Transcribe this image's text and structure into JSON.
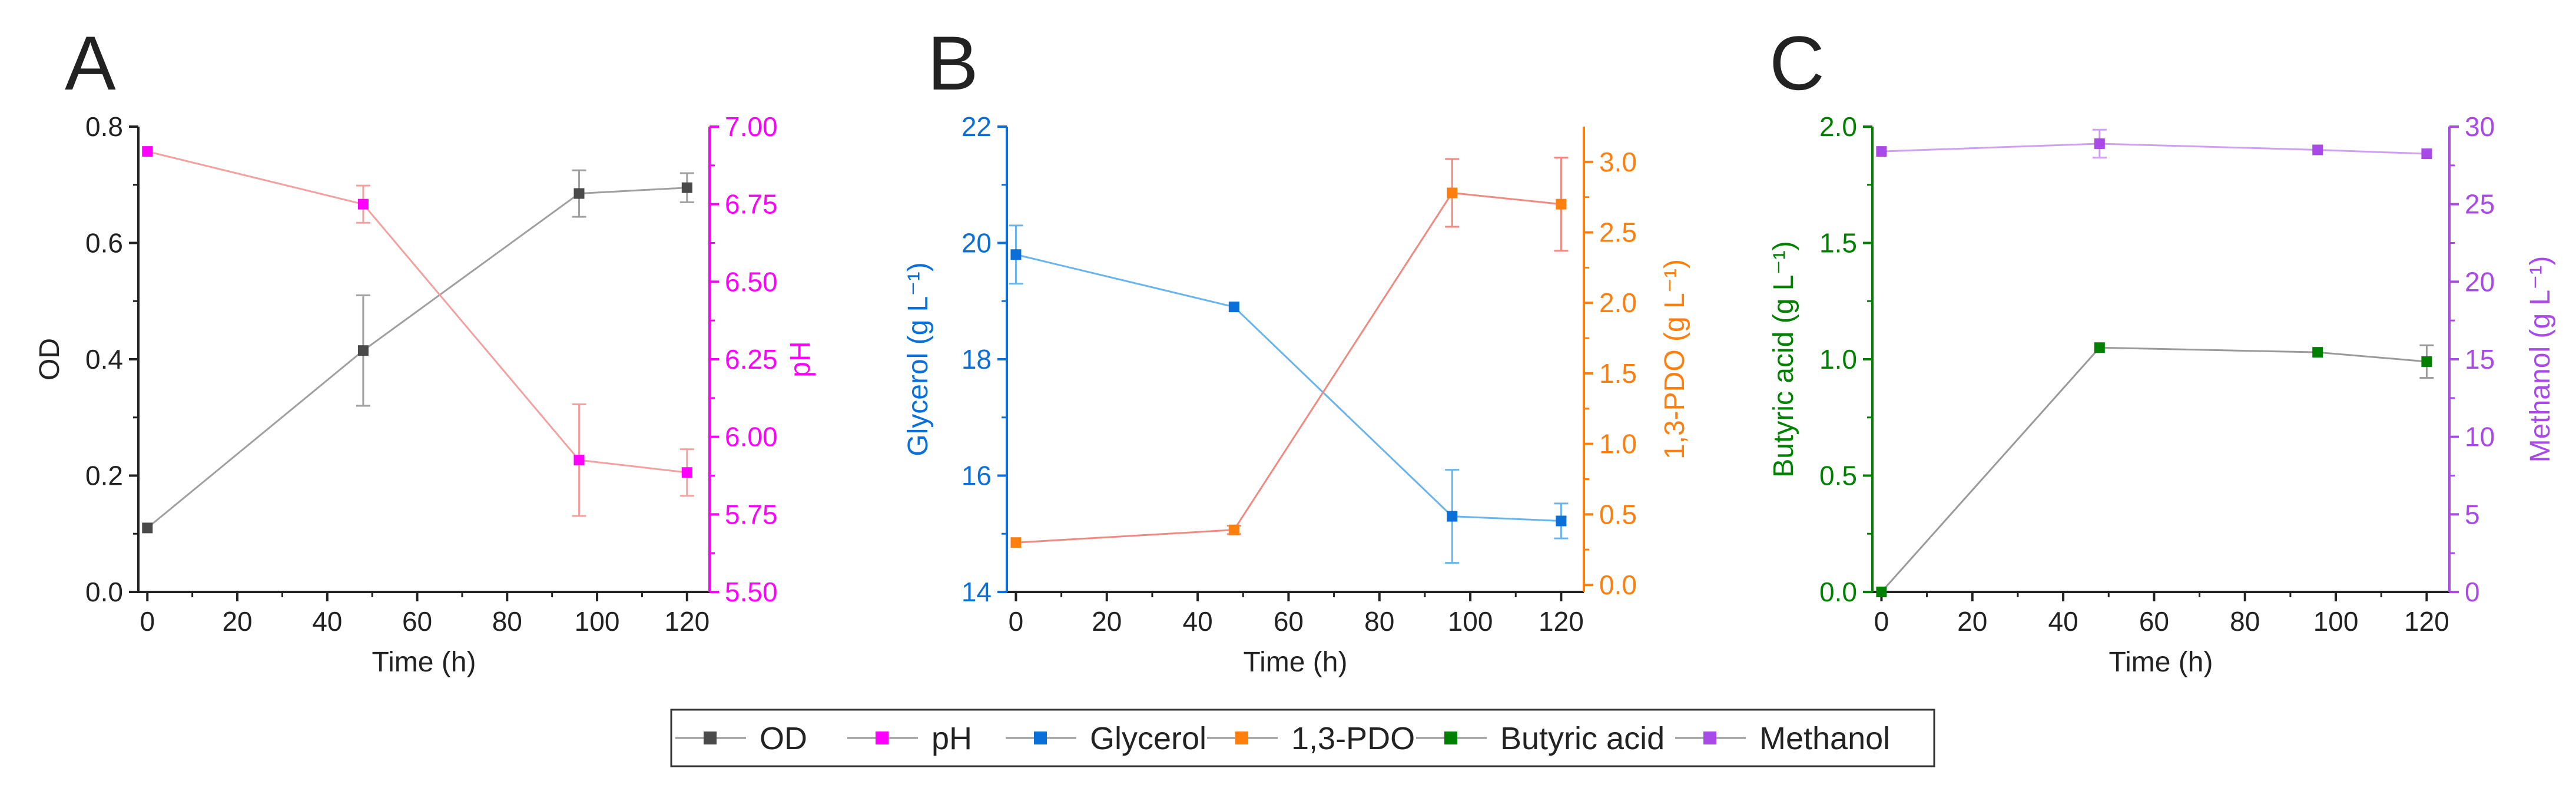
{
  "legend": {
    "items": [
      {
        "label": "OD",
        "color": "#4a4a4a"
      },
      {
        "label": "pH",
        "color": "#ff00ff"
      },
      {
        "label": "Glycerol",
        "color": "#0a6fd8"
      },
      {
        "label": "1,3-PDO",
        "color": "#ff7f0e"
      },
      {
        "label": "Butyric acid",
        "color": "#008000"
      },
      {
        "label": "Methanol",
        "color": "#a94ae8"
      }
    ]
  },
  "chart_data": [
    {
      "panel_label": "A",
      "type": "line",
      "xlabel": "Time (h)",
      "xlim": [
        -2,
        125
      ],
      "xticks": [
        "0",
        "20",
        "40",
        "60",
        "80",
        "100",
        "120"
      ],
      "left_axis": {
        "label": "OD",
        "color": "#222222",
        "ylim": [
          0,
          0.8
        ],
        "ticks": [
          "0.0",
          "0.2",
          "0.4",
          "0.6",
          "0.8"
        ]
      },
      "right_axis": {
        "label": "pH",
        "color": "#ff00ff",
        "ylim": [
          5.5,
          7.0
        ],
        "ticks": [
          "5.50",
          "5.75",
          "6.00",
          "6.25",
          "6.50",
          "6.75",
          "7.00"
        ]
      },
      "series": [
        {
          "name": "OD",
          "axis": "left",
          "color": "#4a4a4a",
          "marker_color": "#4a4a4a",
          "line_color": "#a0a0a0",
          "x": [
            0,
            48,
            96,
            120
          ],
          "values": [
            0.11,
            0.415,
            0.685,
            0.695
          ],
          "errors": [
            0.0,
            0.095,
            0.04,
            0.025
          ]
        },
        {
          "name": "pH",
          "axis": "right",
          "color": "#ff00ff",
          "marker_color": "#ff00ff",
          "line_color": "#f2a0a0",
          "x": [
            0,
            48,
            96,
            120
          ],
          "values": [
            6.92,
            6.75,
            5.925,
            5.885
          ],
          "errors": [
            0.0,
            0.06,
            0.18,
            0.075
          ]
        }
      ]
    },
    {
      "panel_label": "B",
      "type": "line",
      "xlabel": "Time (h)",
      "xlim": [
        -2,
        125
      ],
      "xticks": [
        "0",
        "20",
        "40",
        "60",
        "80",
        "100",
        "120"
      ],
      "left_axis": {
        "label": "Glycerol (g L⁻¹)",
        "color": "#0a6fd8",
        "ylim": [
          14,
          22
        ],
        "ticks": [
          "14",
          "16",
          "18",
          "20",
          "22"
        ]
      },
      "right_axis": {
        "label": "1,3-PDO (g L⁻¹)",
        "color": "#ff7f0e",
        "ylim": [
          -0.05,
          3.25
        ],
        "ticks": [
          "0.0",
          "0.5",
          "1.0",
          "1.5",
          "2.0",
          "2.5",
          "3.0"
        ]
      },
      "series": [
        {
          "name": "Glycerol",
          "axis": "left",
          "color": "#0a6fd8",
          "marker_color": "#0a6fd8",
          "line_color": "#6ab4ec",
          "x": [
            0,
            48,
            96,
            120
          ],
          "values": [
            19.8,
            18.9,
            15.3,
            15.22
          ],
          "errors": [
            0.5,
            0.0,
            0.8,
            0.3
          ]
        },
        {
          "name": "1,3-PDO",
          "axis": "right",
          "color": "#ff7f0e",
          "marker_color": "#ff7f0e",
          "line_color": "#f08a80",
          "x": [
            0,
            48,
            96,
            120
          ],
          "values": [
            0.3,
            0.39,
            2.78,
            2.7
          ],
          "errors": [
            0.0,
            0.03,
            0.24,
            0.33
          ]
        }
      ]
    },
    {
      "panel_label": "C",
      "type": "line",
      "xlabel": "Time (h)",
      "xlim": [
        -2,
        125
      ],
      "xticks": [
        "0",
        "20",
        "40",
        "60",
        "80",
        "100",
        "120"
      ],
      "left_axis": {
        "label": "Butyric acid (g L⁻¹)",
        "color": "#008000",
        "ylim": [
          0,
          2.0
        ],
        "ticks": [
          "0.0",
          "0.5",
          "1.0",
          "1.5",
          "2.0"
        ]
      },
      "right_axis": {
        "label": "Methanol (g L⁻¹)",
        "color": "#a94ae8",
        "ylim": [
          0,
          30
        ],
        "ticks": [
          "0",
          "5",
          "10",
          "15",
          "20",
          "25",
          "30"
        ]
      },
      "series": [
        {
          "name": "Butyric acid",
          "axis": "left",
          "color": "#008000",
          "marker_color": "#008000",
          "line_color": "#9a9a9a",
          "x": [
            0,
            48,
            96,
            120
          ],
          "values": [
            0.0,
            1.05,
            1.03,
            0.99
          ],
          "errors": [
            0.0,
            0.0,
            0.0,
            0.07
          ]
        },
        {
          "name": "Methanol",
          "axis": "right",
          "color": "#a94ae8",
          "marker_color": "#a94ae8",
          "line_color": "#cfa0f2",
          "x": [
            0,
            48,
            96,
            120
          ],
          "values": [
            28.4,
            28.9,
            28.5,
            28.25
          ],
          "errors": [
            0.0,
            0.9,
            0.0,
            0.0
          ]
        }
      ]
    }
  ]
}
